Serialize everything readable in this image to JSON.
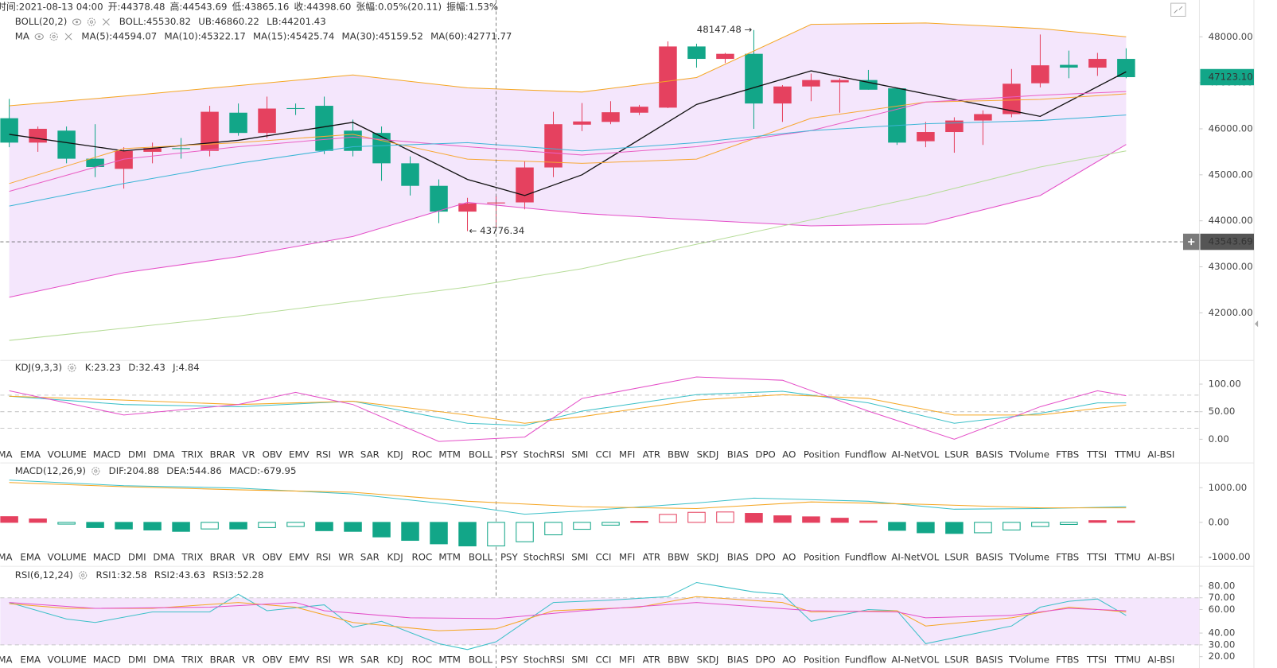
{
  "header": {
    "items": [
      {
        "label": "时间:",
        "value": "2021-08-13 04:00"
      },
      {
        "label": "开:",
        "value": "44378.48"
      },
      {
        "label": "高:",
        "value": "44543.69"
      },
      {
        "label": "低:",
        "value": "43865.16"
      },
      {
        "label": "收:",
        "value": "44398.60"
      },
      {
        "label": "张幅:",
        "value": "0.05%(20.11)"
      },
      {
        "label": "振幅:",
        "value": "1.53%"
      }
    ]
  },
  "tabs": [
    "MA",
    "EMA",
    "VOLUME",
    "MACD",
    "DMI",
    "DMA",
    "TRIX",
    "BRAR",
    "VR",
    "OBV",
    "EMV",
    "RSI",
    "WR",
    "SAR",
    "KDJ",
    "ROC",
    "MTM",
    "BOLL",
    "PSY",
    "StochRSI",
    "SMI",
    "CCI",
    "MFI",
    "ATR",
    "BBW",
    "SKDJ",
    "BIAS",
    "DPO",
    "AO",
    "Position",
    "Fundflow",
    "AI-NetVOL",
    "LSUR",
    "BASIS",
    "TVolume",
    "FTBS",
    "TTSI",
    "TTMU",
    "AI-BSI"
  ],
  "chart_data": [
    {
      "type": "candlestick",
      "categories": [
        null,
        null,
        null,
        null,
        null,
        null,
        null,
        null,
        null,
        null,
        null,
        null,
        null,
        null,
        null,
        null,
        null,
        null,
        null,
        null,
        null,
        null,
        null,
        null,
        null,
        null,
        null,
        null,
        null,
        null,
        null,
        null,
        null,
        null,
        null,
        null,
        null,
        null,
        null,
        null
      ],
      "open": [
        46230,
        45700,
        45960,
        45350,
        45130,
        45500,
        45580,
        45520,
        46350,
        45910,
        46450,
        46500,
        45960,
        45910,
        45250,
        44760,
        44200,
        44378.48,
        44400,
        45160,
        46090,
        46150,
        46350,
        46460,
        47790,
        47520,
        47630,
        46550,
        46920,
        47010,
        47060,
        46880,
        45730,
        45930,
        46180,
        46320,
        46990,
        47390,
        47330,
        47520
      ],
      "high": [
        46650,
        46050,
        46050,
        46100,
        45600,
        45700,
        45800,
        46500,
        46550,
        46700,
        46550,
        46700,
        46200,
        46050,
        45400,
        44900,
        44500,
        44543.69,
        45300,
        46370,
        46560,
        46600,
        46520,
        47900,
        47850,
        47650,
        48147.48,
        46950,
        47200,
        47100,
        47280,
        46900,
        46150,
        46250,
        46400,
        47300,
        48050,
        47700,
        47650,
        47750
      ],
      "low": [
        45600,
        45500,
        45250,
        44950,
        44700,
        45250,
        45350,
        45400,
        45850,
        45800,
        46300,
        45450,
        45400,
        44870,
        44550,
        43950,
        43776.34,
        43865.16,
        44250,
        44950,
        45950,
        46100,
        46300,
        46450,
        47330,
        47430,
        46000,
        46150,
        46600,
        46350,
        46850,
        45650,
        45600,
        45480,
        45650,
        46250,
        46900,
        47100,
        47150,
        47100
      ],
      "close": [
        45700,
        46000,
        45350,
        45170,
        45520,
        45580,
        45560,
        46370,
        45910,
        46440,
        46440,
        45520,
        45520,
        45250,
        44760,
        44200,
        44380,
        44398.6,
        45160,
        46100,
        46160,
        46360,
        46480,
        47790,
        47520,
        47630,
        46550,
        46920,
        47060,
        47060,
        46850,
        45700,
        45930,
        46180,
        46320,
        46980,
        47380,
        47330,
        47520,
        47123.1
      ],
      "up_color": "#e5415f",
      "down_color": "#12a688",
      "band_fill": "#f4e6fc",
      "series": [
        {
          "color": "#f5a623",
          "x": [
            0,
            4,
            8,
            12,
            16,
            20,
            24,
            28,
            32,
            36,
            39
          ],
          "values": [
            46500,
            46710,
            46940,
            47170,
            46890,
            46800,
            47115,
            48270,
            48300,
            48180,
            48000
          ]
        },
        {
          "color": "#e44fc8",
          "x": [
            0,
            4,
            8,
            12,
            16,
            20,
            24,
            28,
            32,
            36,
            39
          ],
          "values": [
            42340,
            42870,
            43220,
            43660,
            44400,
            44160,
            44020,
            43890,
            43930,
            44550,
            45660
          ]
        },
        {
          "color": "#111111",
          "x": [
            0,
            4,
            8,
            12,
            16,
            18,
            20,
            24,
            28,
            32,
            36,
            39
          ],
          "values": [
            45880,
            45520,
            45750,
            46140,
            44900,
            44550,
            45000,
            46530,
            47260,
            46760,
            46270,
            47240
          ]
        },
        {
          "color": "#f7a835",
          "x": [
            0,
            4,
            8,
            12,
            16,
            20,
            24,
            28,
            32,
            36,
            39
          ],
          "values": [
            44810,
            45570,
            45700,
            45880,
            45340,
            45250,
            45340,
            46230,
            46580,
            46640,
            46760
          ]
        },
        {
          "color": "#ea5fc4",
          "x": [
            0,
            4,
            8,
            12,
            16,
            20,
            24,
            28,
            32,
            36,
            39
          ],
          "values": [
            44640,
            45340,
            45610,
            45820,
            45610,
            45430,
            45610,
            45960,
            46580,
            46730,
            46810
          ]
        },
        {
          "color": "#3bb5d6",
          "x": [
            0,
            4,
            8,
            12,
            16,
            20,
            24,
            28,
            32,
            36,
            39
          ],
          "values": [
            44320,
            44810,
            45250,
            45610,
            45700,
            45520,
            45700,
            45960,
            46110,
            46180,
            46300
          ]
        },
        {
          "color": "#b6dc98",
          "x": [
            0,
            8,
            16,
            20,
            24,
            28,
            32,
            36,
            39
          ],
          "values": [
            41400,
            41930,
            42560,
            42960,
            43490,
            44020,
            44550,
            45170,
            45520
          ]
        }
      ],
      "legend_rows": [
        {
          "title": "BOLL(20,2)",
          "items": [
            {
              "text": "BOLL:45530.82",
              "color": "#1aa58a"
            },
            {
              "text": "UB:46860.22",
              "color": "#f5a623"
            },
            {
              "text": "LB:44201.43",
              "color": "#e44fc8"
            }
          ]
        },
        {
          "title": "MA",
          "items": [
            {
              "text": "MA(5):44594.07",
              "color": "#111111"
            },
            {
              "text": "MA(10):45322.17",
              "color": "#f5a623"
            },
            {
              "text": "MA(15):45425.74",
              "color": "#e44fc8"
            },
            {
              "text": "MA(30):45159.52",
              "color": "#3aa5d8"
            },
            {
              "text": "MA(60):42771.77",
              "color": "#9ed67a"
            }
          ]
        }
      ],
      "ylim": [
        41000,
        48800
      ],
      "yticks": [
        {
          "value": 42000,
          "label": "42000.00"
        },
        {
          "value": 43000,
          "label": "43000.00"
        },
        {
          "value": 44000,
          "label": "44000.00"
        },
        {
          "value": 45000,
          "label": "45000.00"
        },
        {
          "value": 46000,
          "label": "46000.00"
        },
        {
          "value": 47000,
          "label": "47000.00"
        },
        {
          "value": 48000,
          "label": "48000.00"
        }
      ],
      "annotations": [
        {
          "text": "48147.48 →"
        },
        {
          "text": "← 43776.34"
        }
      ],
      "last_price": {
        "value": 47123.1,
        "label": "47123.10",
        "color": "#12a688"
      },
      "crosshair": {
        "index": 17,
        "value": 43543.69,
        "label": "43543.69"
      }
    },
    {
      "type": "line",
      "title": "KDJ(9,3,3)",
      "legend_rows": [
        {
          "items": [
            {
              "text": "K:23.23",
              "color": "#17b7a0"
            },
            {
              "text": "D:32.43",
              "color": "#f5a623"
            },
            {
              "text": "J:4.84",
              "color": "#e44fc8"
            }
          ]
        }
      ],
      "ylim": [
        -12,
        140
      ],
      "yticks": [
        {
          "value": 0,
          "label": "0.00"
        },
        {
          "value": 50,
          "label": "50.00"
        },
        {
          "value": 100,
          "label": "100.00"
        }
      ],
      "levels": [
        80,
        50,
        20
      ],
      "series": [
        {
          "color": "#3cc0c8",
          "x": [
            0,
            4,
            8,
            12,
            16,
            18,
            20,
            24,
            27,
            30,
            33,
            36,
            38,
            39
          ],
          "values": [
            78,
            63,
            59,
            69,
            29,
            25,
            51,
            81,
            87,
            66,
            29,
            47,
            66,
            66
          ]
        },
        {
          "color": "#f5a623",
          "x": [
            0,
            4,
            8,
            12,
            16,
            18,
            20,
            24,
            27,
            30,
            33,
            36,
            39
          ],
          "values": [
            78,
            71,
            63,
            69,
            44,
            29,
            41,
            71,
            81,
            74,
            44,
            44,
            62
          ]
        },
        {
          "color": "#e44fc8",
          "x": [
            0,
            4,
            8,
            10,
            12,
            15,
            18,
            20,
            24,
            27,
            30,
            33,
            36,
            38,
            39
          ],
          "values": [
            88,
            44,
            63,
            85,
            63,
            -4,
            4,
            74,
            113,
            107,
            51,
            0,
            59,
            88,
            79
          ]
        }
      ]
    },
    {
      "type": "bar",
      "title": "MACD(12,26,9)",
      "legend_rows": [
        {
          "items": [
            {
              "text": "DIF:204.88",
              "color": "#17b7a0"
            },
            {
              "text": "DEA:544.86",
              "color": "#f5a623"
            },
            {
              "text": "MACD:-679.95",
              "color": "#12a688"
            }
          ]
        }
      ],
      "ylim": [
        -1245,
        1645
      ],
      "yticks": [
        {
          "value": -1000,
          "label": "-1000.00"
        },
        {
          "value": 0,
          "label": "0.00"
        },
        {
          "value": 1000,
          "label": "1000.00"
        }
      ],
      "values": [
        165,
        100,
        -50,
        -150,
        -190,
        -220,
        -260,
        -190,
        -190,
        -150,
        -120,
        -240,
        -260,
        -420,
        -520,
        -620,
        -680,
        -679.95,
        -560,
        -360,
        -200,
        -80,
        30,
        230,
        290,
        300,
        260,
        190,
        160,
        120,
        40,
        -230,
        -300,
        -320,
        -300,
        -220,
        -120,
        -60,
        50,
        40
      ],
      "up_color": "#e5415f",
      "down_color": "#12a688",
      "series": [
        {
          "color": "#3cc0c8",
          "x": [
            0,
            4,
            8,
            12,
            16,
            18,
            20,
            24,
            26,
            30,
            33,
            36,
            39
          ],
          "values": [
            1220,
            1060,
            990,
            820,
            470,
            235,
            330,
            560,
            700,
            610,
            380,
            400,
            450
          ]
        },
        {
          "color": "#f5a623",
          "x": [
            0,
            4,
            8,
            12,
            16,
            20,
            24,
            28,
            32,
            36,
            39
          ],
          "values": [
            1150,
            1030,
            940,
            870,
            610,
            450,
            400,
            590,
            520,
            420,
            420
          ]
        }
      ]
    },
    {
      "type": "line",
      "title": "RSI(6,12,24)",
      "legend_rows": [
        {
          "items": [
            {
              "text": "RSI1:32.58",
              "color": "#17b7a0"
            },
            {
              "text": "RSI2:43.63",
              "color": "#f5a623"
            },
            {
              "text": "RSI3:52.28",
              "color": "#e44fc8"
            }
          ]
        }
      ],
      "ylim": [
        11,
        94
      ],
      "yticks": [
        {
          "value": 20,
          "label": "20.00"
        },
        {
          "value": 30,
          "label": "30.00"
        },
        {
          "value": 40,
          "label": "40.00"
        },
        {
          "value": 60,
          "label": "60.00"
        },
        {
          "value": 70,
          "label": "70.00"
        },
        {
          "value": 80,
          "label": "80.00"
        }
      ],
      "levels": [
        70,
        30
      ],
      "band_fill": "#f4e6fc",
      "series": [
        {
          "color": "#3cc0c8",
          "x": [
            0,
            2,
            3,
            5,
            7,
            8,
            9,
            11,
            12,
            13,
            15,
            16,
            17,
            19,
            21,
            23,
            24,
            26,
            27,
            28,
            30,
            31,
            32,
            35,
            36,
            37,
            38,
            39
          ],
          "values": [
            66,
            52,
            49,
            58,
            58,
            73,
            59,
            64,
            45,
            50,
            31,
            26,
            32.58,
            66,
            68,
            71,
            83,
            75,
            73,
            50,
            60,
            59,
            31,
            46,
            62,
            67,
            69,
            55
          ]
        },
        {
          "color": "#f5a623",
          "x": [
            0,
            2,
            5,
            8,
            10,
            12,
            15,
            17,
            19,
            22,
            24,
            27,
            28,
            31,
            32,
            35,
            37,
            39
          ],
          "values": [
            65,
            61,
            61,
            66,
            62,
            49,
            42,
            43.63,
            59,
            62,
            71,
            66,
            58,
            59,
            46,
            53,
            62,
            58
          ]
        },
        {
          "color": "#e44fc8",
          "x": [
            0,
            3,
            7,
            10,
            11,
            14,
            17,
            20,
            24,
            28,
            31,
            32,
            35,
            37,
            39
          ],
          "values": [
            66,
            61,
            62,
            66,
            59,
            53,
            52.28,
            59,
            66,
            59,
            58,
            53,
            55,
            61,
            59
          ]
        }
      ]
    }
  ]
}
